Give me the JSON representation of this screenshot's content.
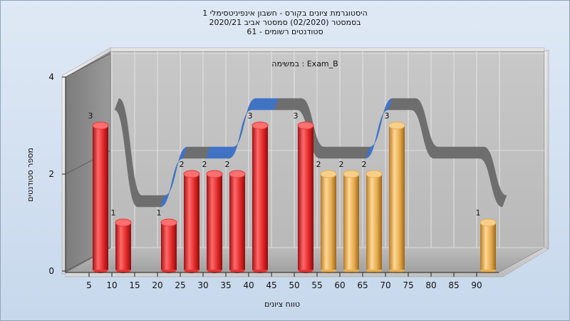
{
  "chart_title": {
    "line1": "היסטוגרמת ציונים בקורס - חשבון אינפיניטסימלי 1",
    "line2": "בסמסטר  (02/2020)  סמסטר אביב 2020/21",
    "line3": "סטודנטים רשומים - 61"
  },
  "chart_data": {
    "type": "bar",
    "annotation": "במשימה : Exam_B",
    "xlabel": "טווח ציונים",
    "ylabel": "מספר סטודנטים",
    "categories": [
      "5",
      "10",
      "15",
      "20",
      "25",
      "30",
      "35",
      "40",
      "45",
      "50",
      "55",
      "60",
      "65",
      "70",
      "75",
      "80",
      "85",
      "90"
    ],
    "yticks": [
      "0",
      "2",
      "4"
    ],
    "ylim": [
      0,
      4
    ],
    "bars": [
      {
        "x": 5,
        "value": 3,
        "label": "3",
        "color": "#e23636"
      },
      {
        "x": 10,
        "value": 1,
        "label": "1",
        "color": "#e23636"
      },
      {
        "x": 20,
        "value": 1,
        "label": "1",
        "color": "#e23636"
      },
      {
        "x": 25,
        "value": 2,
        "label": "2",
        "color": "#e23636"
      },
      {
        "x": 30,
        "value": 2,
        "label": "2",
        "color": "#e23636"
      },
      {
        "x": 35,
        "value": 2,
        "label": "2",
        "color": "#e23636"
      },
      {
        "x": 40,
        "value": 3,
        "label": "3",
        "color": "#e23636"
      },
      {
        "x": 50,
        "value": 3,
        "label": "3",
        "color": "#e23636"
      },
      {
        "x": 55,
        "value": 2,
        "label": "2",
        "color": "#e5ae52"
      },
      {
        "x": 60,
        "value": 2,
        "label": "2",
        "color": "#e5ae52"
      },
      {
        "x": 65,
        "value": 2,
        "label": "2",
        "color": "#e5ae52"
      },
      {
        "x": 70,
        "value": 3,
        "label": "3",
        "color": "#e5ae52"
      },
      {
        "x": 90,
        "value": 1,
        "label": "1",
        "color": "#e5ae52"
      }
    ],
    "ribbon": {
      "x": [
        5,
        10,
        15,
        20,
        25,
        30,
        35,
        40,
        45,
        50,
        55,
        60,
        65,
        70,
        75,
        80,
        85,
        90
      ],
      "y": [
        3,
        1,
        1,
        2,
        2,
        2,
        3,
        3,
        3,
        2,
        2,
        2,
        3,
        3,
        2,
        2,
        2,
        1
      ],
      "rising_color": "#3a6fc4",
      "falling_color": "#6a6a6a"
    },
    "grid": true,
    "colors": {
      "red_bar": "#e23636",
      "gold_bar": "#e5ae52",
      "back_wall": "#c2c2c2",
      "side_wall": "#8c8c8c",
      "floor": "#a6a6a6"
    }
  }
}
